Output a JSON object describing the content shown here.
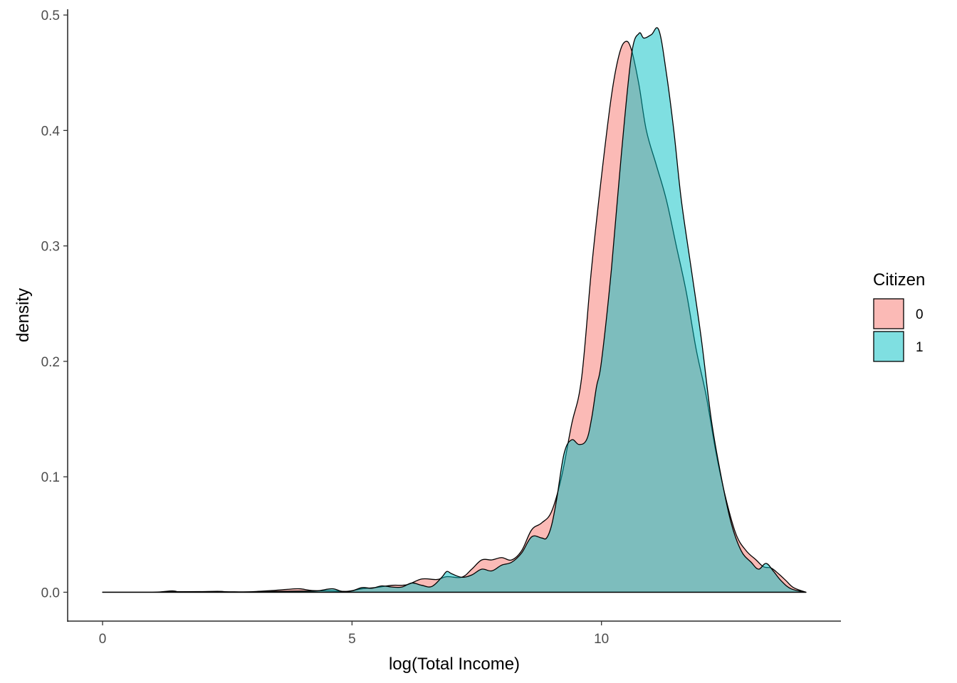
{
  "chart_data": {
    "type": "area",
    "subtype": "density",
    "title": "",
    "xlabel": "log(Total Income)",
    "ylabel": "density",
    "xlim": [
      -0.7,
      14.8
    ],
    "ylim": [
      -0.025,
      0.505
    ],
    "x_ticks": [
      0,
      5,
      10
    ],
    "x_tick_labels": [
      "0",
      "5",
      "10"
    ],
    "y_ticks": [
      0.0,
      0.1,
      0.2,
      0.3,
      0.4,
      0.5
    ],
    "y_tick_labels": [
      "0.0",
      "0.1",
      "0.2",
      "0.3",
      "0.4",
      "0.5"
    ],
    "grid": false,
    "legend": {
      "title": "Citizen",
      "position": "right"
    },
    "series": [
      {
        "name": "0",
        "color": "#F8766D",
        "points": [
          [
            0.0,
            0.0
          ],
          [
            1.0,
            0.0
          ],
          [
            1.4,
            0.0012
          ],
          [
            1.6,
            0.0
          ],
          [
            2.3,
            0.0008
          ],
          [
            2.6,
            0.0
          ],
          [
            3.0,
            0.0005
          ],
          [
            3.4,
            0.0015
          ],
          [
            3.7,
            0.0025
          ],
          [
            3.95,
            0.003
          ],
          [
            4.2,
            0.0015
          ],
          [
            4.6,
            0.0012
          ],
          [
            4.9,
            0.0008
          ],
          [
            5.2,
            0.003
          ],
          [
            5.5,
            0.0042
          ],
          [
            5.8,
            0.006
          ],
          [
            6.1,
            0.0065
          ],
          [
            6.4,
            0.0115
          ],
          [
            6.7,
            0.011
          ],
          [
            6.9,
            0.0135
          ],
          [
            7.2,
            0.013
          ],
          [
            7.4,
            0.02
          ],
          [
            7.6,
            0.028
          ],
          [
            7.8,
            0.028
          ],
          [
            8.0,
            0.03
          ],
          [
            8.2,
            0.028
          ],
          [
            8.4,
            0.036
          ],
          [
            8.6,
            0.054
          ],
          [
            8.8,
            0.06
          ],
          [
            9.0,
            0.07
          ],
          [
            9.2,
            0.1
          ],
          [
            9.4,
            0.145
          ],
          [
            9.6,
            0.185
          ],
          [
            9.8,
            0.28
          ],
          [
            10.0,
            0.36
          ],
          [
            10.2,
            0.43
          ],
          [
            10.35,
            0.465
          ],
          [
            10.48,
            0.477
          ],
          [
            10.6,
            0.47
          ],
          [
            10.75,
            0.44
          ],
          [
            10.9,
            0.4
          ],
          [
            11.1,
            0.37
          ],
          [
            11.3,
            0.34
          ],
          [
            11.5,
            0.3
          ],
          [
            11.7,
            0.26
          ],
          [
            11.9,
            0.21
          ],
          [
            12.1,
            0.17
          ],
          [
            12.3,
            0.12
          ],
          [
            12.5,
            0.08
          ],
          [
            12.7,
            0.05
          ],
          [
            12.9,
            0.036
          ],
          [
            13.1,
            0.028
          ],
          [
            13.25,
            0.022
          ],
          [
            13.4,
            0.021
          ],
          [
            13.55,
            0.016
          ],
          [
            13.7,
            0.01
          ],
          [
            13.85,
            0.004
          ],
          [
            14.1,
            0.0
          ]
        ]
      },
      {
        "name": "1",
        "color": "#00BFC4",
        "points": [
          [
            0.0,
            0.0
          ],
          [
            1.0,
            0.0
          ],
          [
            1.4,
            0.0005
          ],
          [
            2.3,
            0.0005
          ],
          [
            3.0,
            0.0003
          ],
          [
            3.5,
            0.0008
          ],
          [
            4.0,
            0.001
          ],
          [
            4.3,
            0.0012
          ],
          [
            4.6,
            0.003
          ],
          [
            4.8,
            0.0008
          ],
          [
            5.0,
            0.0012
          ],
          [
            5.2,
            0.004
          ],
          [
            5.4,
            0.0035
          ],
          [
            5.6,
            0.0055
          ],
          [
            5.8,
            0.0045
          ],
          [
            6.0,
            0.0045
          ],
          [
            6.2,
            0.008
          ],
          [
            6.4,
            0.006
          ],
          [
            6.6,
            0.005
          ],
          [
            6.8,
            0.013
          ],
          [
            6.9,
            0.018
          ],
          [
            7.0,
            0.016
          ],
          [
            7.2,
            0.013
          ],
          [
            7.4,
            0.015
          ],
          [
            7.6,
            0.02
          ],
          [
            7.8,
            0.0185
          ],
          [
            8.0,
            0.0235
          ],
          [
            8.2,
            0.026
          ],
          [
            8.4,
            0.034
          ],
          [
            8.6,
            0.048
          ],
          [
            8.8,
            0.047
          ],
          [
            8.9,
            0.047
          ],
          [
            9.0,
            0.058
          ],
          [
            9.1,
            0.08
          ],
          [
            9.25,
            0.12
          ],
          [
            9.4,
            0.132
          ],
          [
            9.55,
            0.128
          ],
          [
            9.7,
            0.132
          ],
          [
            9.8,
            0.15
          ],
          [
            9.9,
            0.178
          ],
          [
            10.0,
            0.2
          ],
          [
            10.2,
            0.28
          ],
          [
            10.4,
            0.38
          ],
          [
            10.6,
            0.465
          ],
          [
            10.75,
            0.484
          ],
          [
            10.85,
            0.48
          ],
          [
            11.0,
            0.483
          ],
          [
            11.15,
            0.487
          ],
          [
            11.3,
            0.45
          ],
          [
            11.45,
            0.4
          ],
          [
            11.6,
            0.34
          ],
          [
            11.8,
            0.28
          ],
          [
            12.0,
            0.22
          ],
          [
            12.2,
            0.15
          ],
          [
            12.4,
            0.1
          ],
          [
            12.6,
            0.06
          ],
          [
            12.8,
            0.036
          ],
          [
            13.0,
            0.026
          ],
          [
            13.15,
            0.02
          ],
          [
            13.3,
            0.025
          ],
          [
            13.45,
            0.018
          ],
          [
            13.6,
            0.01
          ],
          [
            13.8,
            0.003
          ],
          [
            14.1,
            0.0
          ]
        ]
      }
    ]
  }
}
